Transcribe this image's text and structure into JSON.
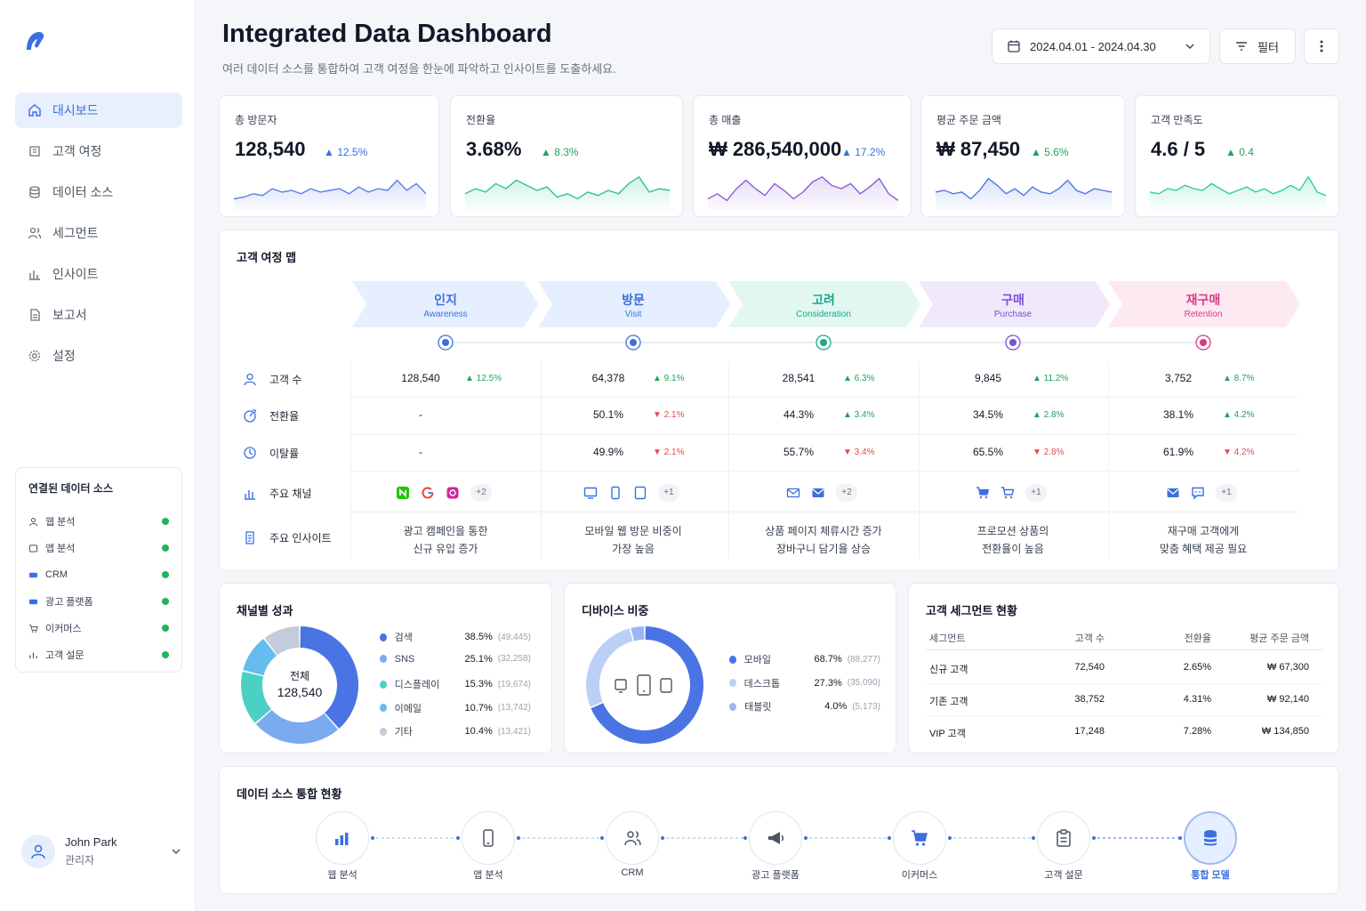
{
  "sidebar": {
    "nav": [
      {
        "label": "대시보드",
        "icon": "home-icon"
      },
      {
        "label": "고객 여정",
        "icon": "journey-icon"
      },
      {
        "label": "데이터 소스",
        "icon": "database-icon"
      },
      {
        "label": "세그먼트",
        "icon": "users-icon"
      },
      {
        "label": "인사이트",
        "icon": "insight-icon"
      },
      {
        "label": "보고서",
        "icon": "report-icon"
      },
      {
        "label": "설정",
        "icon": "gear-icon"
      }
    ],
    "data_sources_title": "연결된 데이터 소스",
    "data_sources": [
      "웹 분석",
      "앱 분석",
      "CRM",
      "광고 플랫폼",
      "이커머스",
      "고객 설문"
    ],
    "user": {
      "name": "John Park",
      "role": "관리자"
    }
  },
  "header": {
    "title": "Integrated Data Dashboard",
    "subtitle": "여러 데이터 소스를 통합하여 고객 여정을 한눈에 파악하고 인사이트를 도출하세요.",
    "date_range": "2024.04.01 - 2024.04.30",
    "filter_label": "필터"
  },
  "kpis": [
    {
      "label": "총 방문자",
      "value": "128,540",
      "delta": "12.5%",
      "color": "#5b7ee8"
    },
    {
      "label": "전환율",
      "value": "3.68%",
      "delta": "8.3%",
      "color": "#2cc48f"
    },
    {
      "label": "총 매출",
      "value": "₩ 286,540,000",
      "delta": "17.2%",
      "color": "#8a5fd6"
    },
    {
      "label": "평균 주문 금액",
      "value": "₩ 87,450",
      "delta": "5.6%",
      "color": "#4f77e3"
    },
    {
      "label": "고객 만족도",
      "value": "4.6 / 5",
      "delta": "0.4",
      "color": "#2ccfa0"
    }
  ],
  "journey": {
    "title": "고객 여정 맵",
    "stages": [
      {
        "name": "인지",
        "en": "Awareness",
        "color": "#3b6fe0",
        "bg": "#e6efff"
      },
      {
        "name": "방문",
        "en": "Visit",
        "color": "#3b6fe0",
        "bg": "#e6efff"
      },
      {
        "name": "고려",
        "en": "Consideration",
        "color": "#16a98a",
        "bg": "#e3f7f1"
      },
      {
        "name": "구매",
        "en": "Purchase",
        "color": "#7b4fd6",
        "bg": "#efe9fb"
      },
      {
        "name": "재구매",
        "en": "Retention",
        "color": "#d63a86",
        "bg": "#fce9f1"
      }
    ],
    "rows": {
      "customers": {
        "label": "고객 수",
        "values": [
          "128,540",
          "64,378",
          "28,541",
          "9,845",
          "3,752"
        ],
        "deltas": [
          "▲ 12.5%",
          "▲ 9.1%",
          "▲ 6.3%",
          "▲ 11.2%",
          "▲ 8.7%"
        ]
      },
      "conversion": {
        "label": "전환율",
        "values": [
          "-",
          "50.1%",
          "44.3%",
          "34.5%",
          "38.1%"
        ],
        "deltas": [
          "",
          "▼ 2.1%",
          "▲ 3.4%",
          "▲ 2.8%",
          "▲ 4.2%"
        ]
      },
      "churn": {
        "label": "이탈률",
        "values": [
          "-",
          "49.9%",
          "55.7%",
          "65.5%",
          "61.9%"
        ],
        "deltas": [
          "",
          "▼ 2.1%",
          "▼ 3.4%",
          "▼ 2.8%",
          "▼ 4.2%"
        ]
      },
      "channels": {
        "label": "주요 채널",
        "more": [
          "+2",
          "+1",
          "+2",
          "+1",
          "+1"
        ]
      },
      "insights": {
        "label": "주요 인사이트",
        "values": [
          [
            "광고 캠페인을 통한",
            "신규 유입 증가"
          ],
          [
            "모바일 웹 방문 비중이",
            "가장 높음"
          ],
          [
            "상품 페이지 체류시간 증가",
            "장바구니 담기율 상승"
          ],
          [
            "프로모션 상품의",
            "전환율이 높음"
          ],
          [
            "재구매 고객에게",
            "맞춤 혜택 제공 필요"
          ]
        ]
      }
    }
  },
  "channel_perf": {
    "title": "채널별 성과",
    "center_label": "전체",
    "center_value": "128,540",
    "items": [
      {
        "name": "검색",
        "pct": "38.5%",
        "count": "(49,445)",
        "value": 38.5,
        "color": "#4a74e3"
      },
      {
        "name": "SNS",
        "pct": "25.1%",
        "count": "(32,258)",
        "value": 25.1,
        "color": "#7baaf1"
      },
      {
        "name": "디스플레이",
        "pct": "15.3%",
        "count": "(19,674)",
        "value": 15.3,
        "color": "#4cd0c4"
      },
      {
        "name": "이메일",
        "pct": "10.7%",
        "count": "(13,742)",
        "value": 10.7,
        "color": "#66bcef"
      },
      {
        "name": "기타",
        "pct": "10.4%",
        "count": "(13,421)",
        "value": 10.4,
        "color": "#c3cbdd"
      }
    ]
  },
  "device": {
    "title": "디바이스 비중",
    "items": [
      {
        "name": "모바일",
        "pct": "68.7%",
        "count": "(88,277)",
        "value": 68.7,
        "color": "#4a74e3"
      },
      {
        "name": "데스크톱",
        "pct": "27.3%",
        "count": "(35,090)",
        "value": 27.3,
        "color": "#bcd0f7"
      },
      {
        "name": "태블릿",
        "pct": "4.0%",
        "count": "(5,173)",
        "value": 4.0,
        "color": "#9bb7f2"
      }
    ]
  },
  "segments": {
    "title": "고객 세그먼트 현황",
    "headers": [
      "세그먼트",
      "고객 수",
      "전환율",
      "평균 주문 금액"
    ],
    "rows": [
      [
        "신규 고객",
        "72,540",
        "2.65%",
        "₩ 67,300"
      ],
      [
        "기존 고객",
        "38,752",
        "4.31%",
        "₩ 92,140"
      ],
      [
        "VIP 고객",
        "17,248",
        "7.28%",
        "₩ 134,850"
      ]
    ]
  },
  "integration": {
    "title": "데이터 소스 통합 현황",
    "nodes": [
      "웹 분석",
      "앱 분석",
      "CRM",
      "광고 플랫폼",
      "이커머스",
      "고객 설문",
      "통합 모델"
    ]
  }
}
